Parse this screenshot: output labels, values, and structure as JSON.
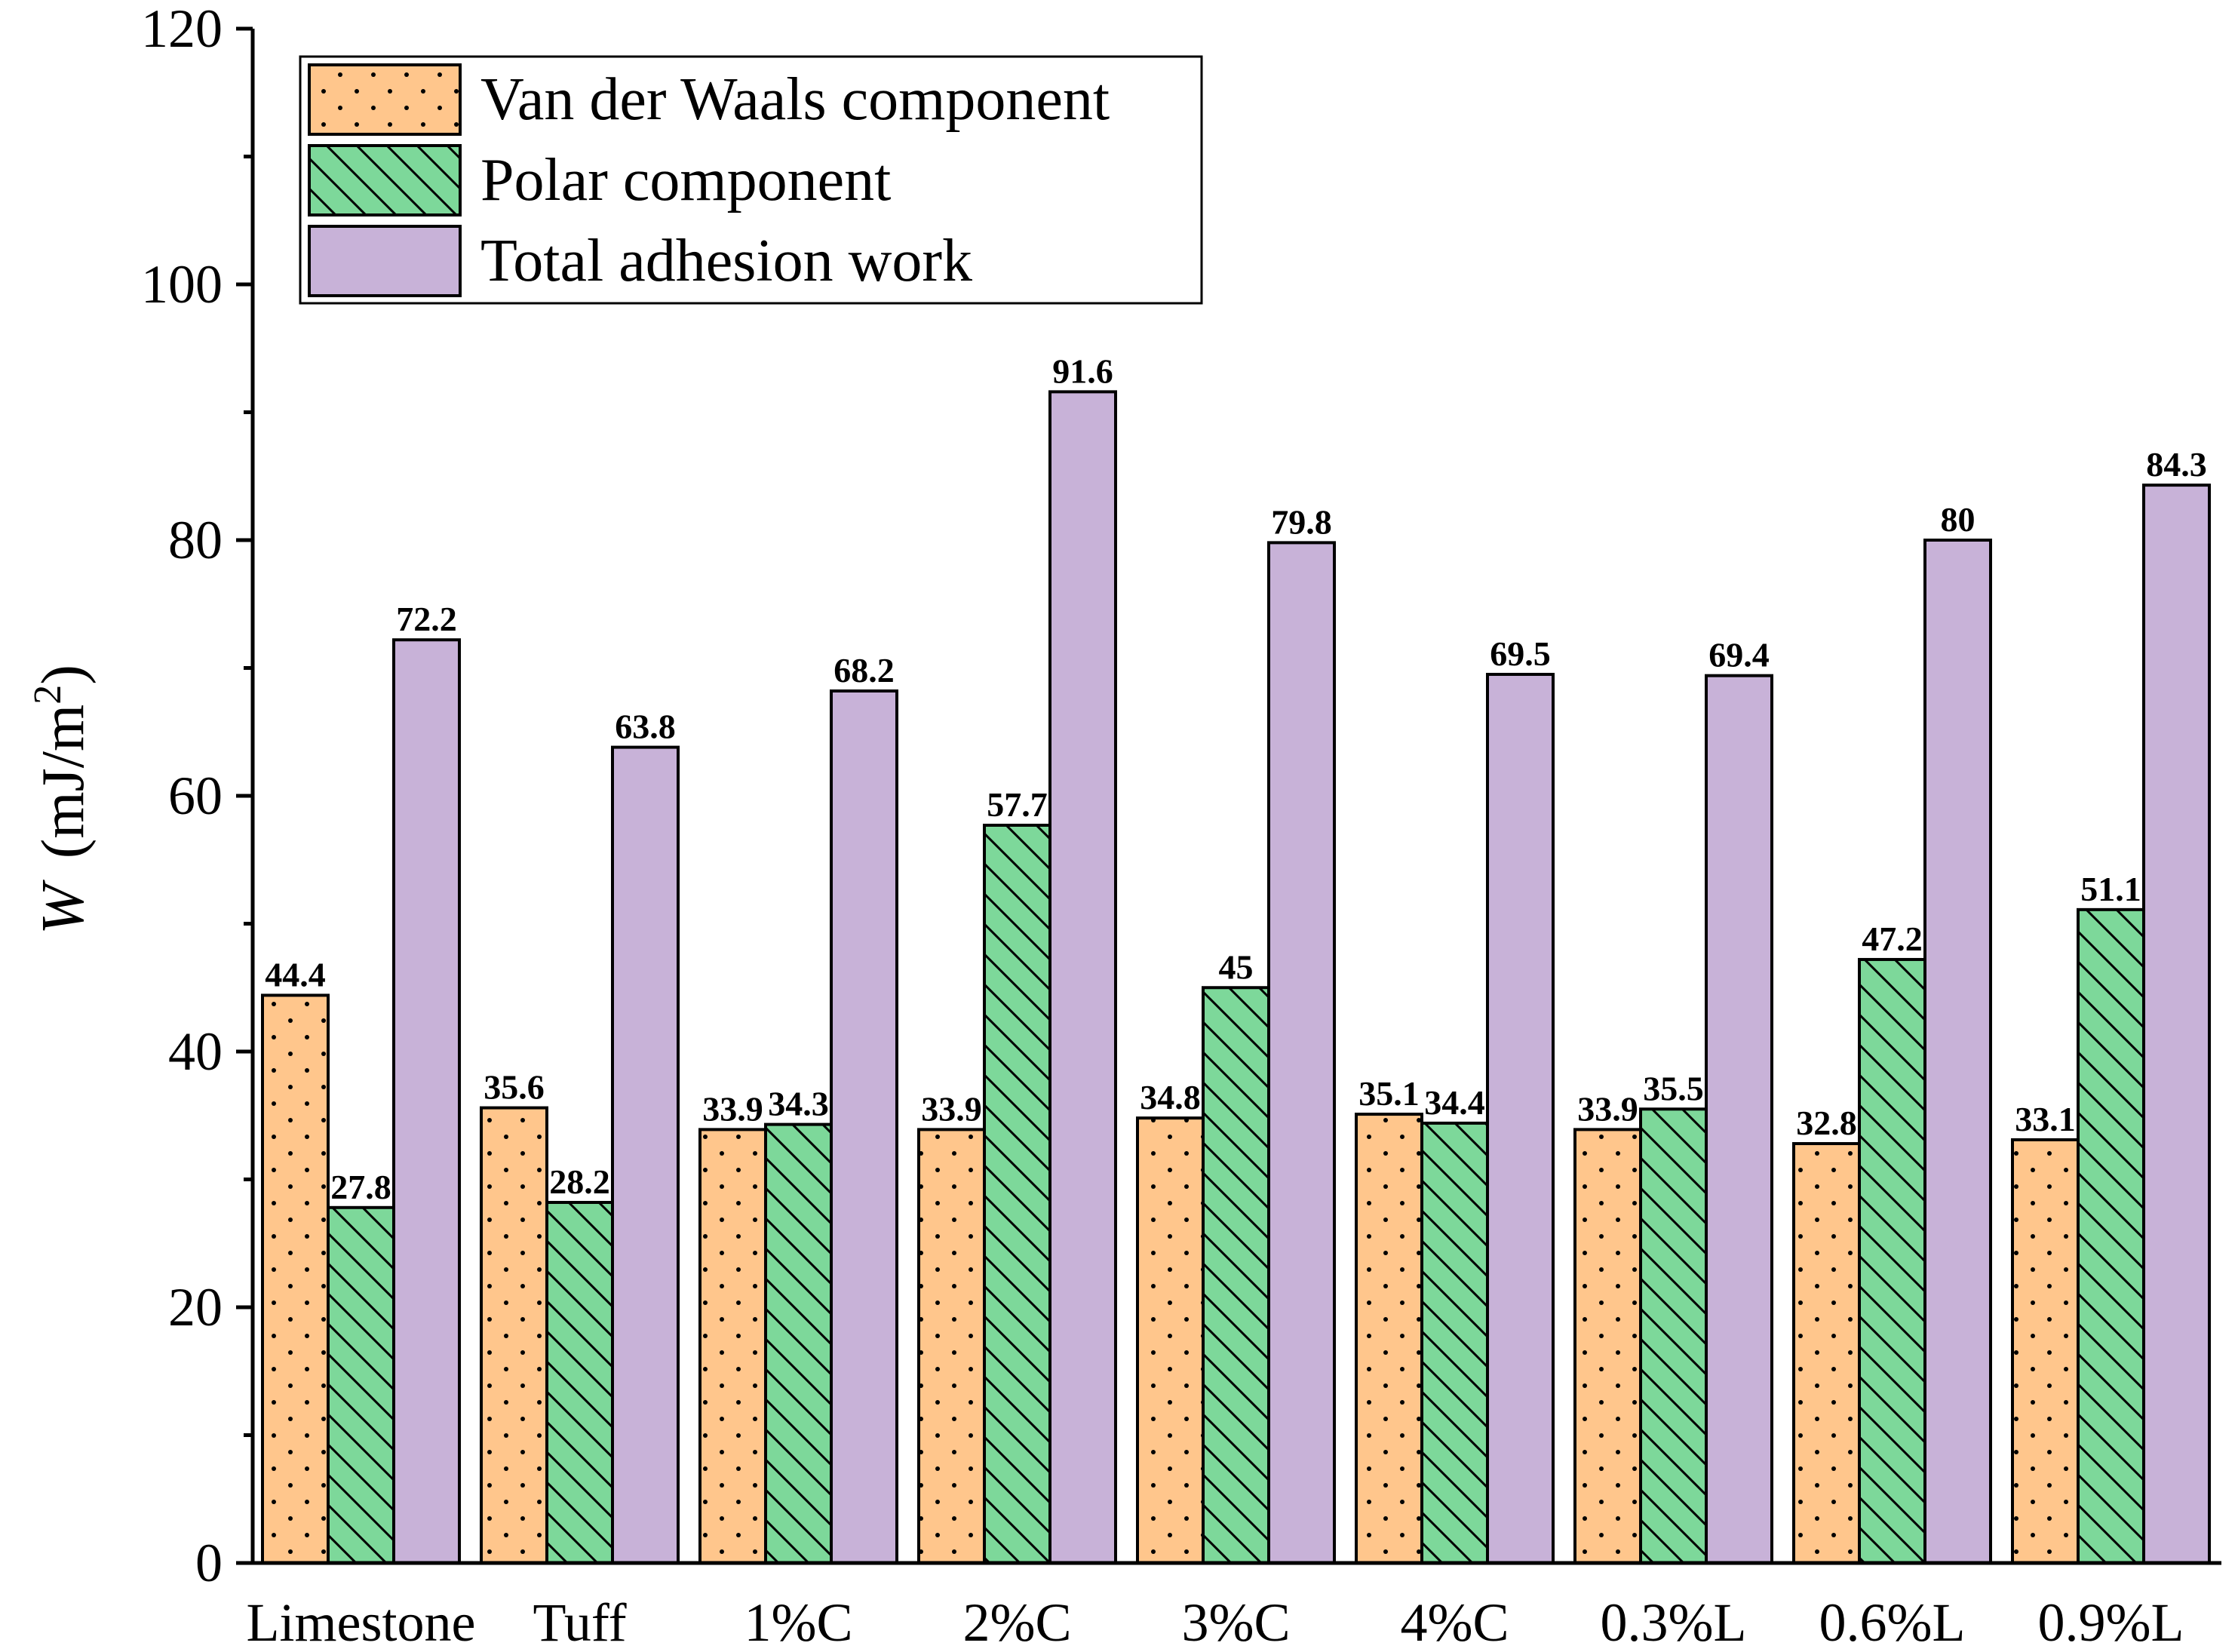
{
  "chart_data": {
    "type": "bar",
    "title": "",
    "xlabel": "",
    "ylabel": {
      "variable": "W",
      "unit_prefix": "(mJ/m",
      "unit_exponent": "2",
      "unit_suffix": ")"
    },
    "ylim": [
      0,
      120
    ],
    "yticks": [
      0,
      20,
      40,
      60,
      80,
      100,
      120
    ],
    "legend_position": "top-left",
    "categories": [
      "Limestone",
      "Tuff",
      "1%C",
      "2%C",
      "3%C",
      "4%C",
      "0.3%L",
      "0.6%L",
      "0.9%L"
    ],
    "series": [
      {
        "name": "Van der Waals component",
        "color": "#FFC68C",
        "pattern": "dots",
        "values": [
          44.4,
          35.6,
          33.9,
          33.9,
          34.8,
          35.1,
          33.9,
          32.8,
          33.1
        ],
        "labels": [
          "44.4",
          "35.6",
          "33.9",
          "33.9",
          "34.8",
          "35.1",
          "33.9",
          "32.8",
          "33.1"
        ]
      },
      {
        "name": "Polar component",
        "color": "#7DD89A",
        "pattern": "diagonal-hatch",
        "values": [
          27.8,
          28.2,
          34.3,
          57.7,
          45,
          34.4,
          35.5,
          47.2,
          51.1
        ],
        "labels": [
          "27.8",
          "28.2",
          "34.3",
          "57.7",
          "45",
          "34.4",
          "35.5",
          "47.2",
          "51.1"
        ]
      },
      {
        "name": "Total adhesion work",
        "color": "#C8B2D8",
        "pattern": "solid",
        "values": [
          72.2,
          63.8,
          68.2,
          91.6,
          79.8,
          69.5,
          69.4,
          80,
          84.3
        ],
        "labels": [
          "72.2",
          "63.8",
          "68.2",
          "91.6",
          "79.8",
          "69.5",
          "69.4",
          "80",
          "84.3"
        ]
      }
    ]
  }
}
